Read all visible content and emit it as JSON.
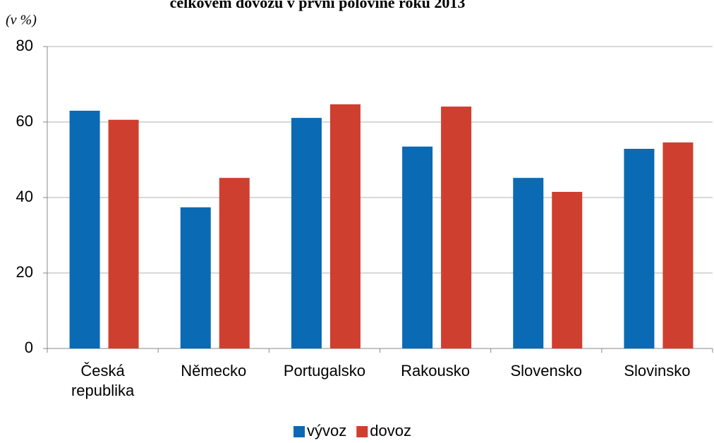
{
  "chart_data": {
    "type": "bar",
    "title": "celkovém dovozu v první polovině roku 2013",
    "unit_label": "(v %)",
    "categories": [
      "Česká republika",
      "Německo",
      "Portugalsko",
      "Rakousko",
      "Slovensko",
      "Slovinsko"
    ],
    "series": [
      {
        "name": "vývoz",
        "color": "#0a6ab4",
        "values": [
          63.0,
          37.4,
          61.1,
          53.5,
          45.2,
          52.9
        ]
      },
      {
        "name": "dovoz",
        "color": "#cf3f2f",
        "values": [
          60.6,
          45.2,
          64.7,
          64.1,
          41.5,
          54.6
        ]
      }
    ],
    "ylim": [
      0,
      80
    ],
    "yticks": [
      0,
      20,
      40,
      60,
      80
    ],
    "grid": true,
    "legend": "bottom"
  }
}
